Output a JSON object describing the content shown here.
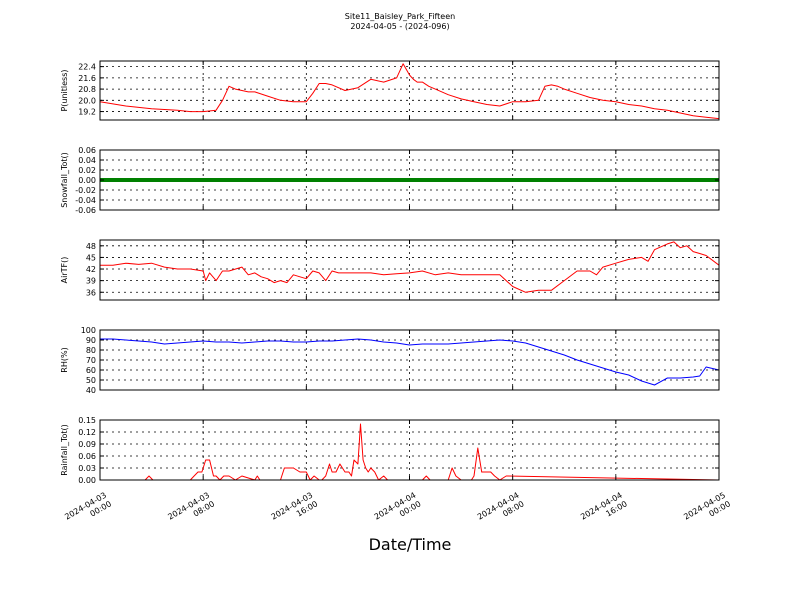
{
  "figure": {
    "title_line1": "Site11_Baisley_Park_Fifteen",
    "title_line2": "2024-04-05 - (2024-096)",
    "xlabel": "Date/Time"
  },
  "chart_data": [
    {
      "type": "line",
      "ylabel": "P(unitless)",
      "ylim": [
        18.6,
        22.8
      ],
      "yticks": [
        "22.4",
        "21.6",
        "20.8",
        "20.0",
        "19.2"
      ],
      "ytick_values": [
        22.4,
        21.6,
        20.8,
        20.0,
        19.2
      ],
      "xlim": [
        0,
        48
      ],
      "grid": true,
      "series": [
        {
          "color": "#ff0000",
          "x": [
            0,
            2,
            4,
            6,
            7,
            8,
            9,
            9.5,
            10,
            10.5,
            11,
            11.5,
            12,
            13,
            14,
            15,
            16,
            16.5,
            17,
            17.5,
            18,
            19,
            20,
            21,
            22,
            23,
            23.5,
            24,
            24.3,
            24.6,
            25,
            25.5,
            26,
            27,
            28,
            29,
            30,
            31,
            32,
            33,
            34,
            34.5,
            35,
            35.5,
            36,
            37,
            38,
            39,
            40,
            41,
            42,
            43,
            44,
            45,
            46,
            47,
            48
          ],
          "y": [
            19.9,
            19.6,
            19.4,
            19.3,
            19.2,
            19.2,
            19.3,
            20.0,
            21.0,
            20.8,
            20.7,
            20.6,
            20.6,
            20.3,
            20.0,
            19.9,
            19.9,
            20.5,
            21.2,
            21.2,
            21.1,
            20.7,
            20.9,
            21.5,
            21.3,
            21.6,
            22.6,
            21.8,
            21.5,
            21.3,
            21.3,
            21.0,
            20.8,
            20.4,
            20.1,
            19.9,
            19.7,
            19.6,
            19.9,
            19.9,
            20.0,
            21.0,
            21.1,
            21.0,
            20.8,
            20.5,
            20.2,
            20.0,
            19.9,
            19.7,
            19.6,
            19.4,
            19.3,
            19.1,
            18.9,
            18.8,
            18.7
          ]
        }
      ]
    },
    {
      "type": "line",
      "ylabel": "Snowfall_Tot()",
      "ylim": [
        -0.06,
        0.06
      ],
      "yticks": [
        "0.06",
        "0.04",
        "0.02",
        "0.00",
        "-0.02",
        "-0.04",
        "-0.06"
      ],
      "ytick_values": [
        0.06,
        0.04,
        0.02,
        0.0,
        -0.02,
        -0.04,
        -0.06
      ],
      "xlim": [
        0,
        48
      ],
      "grid": true,
      "series": [
        {
          "color": "#008000",
          "x": [
            0,
            48
          ],
          "y": [
            0.0,
            0.0
          ]
        }
      ]
    },
    {
      "type": "line",
      "ylabel": "AirTF()",
      "ylim": [
        34,
        49.5
      ],
      "yticks": [
        "48",
        "45",
        "42",
        "39",
        "36"
      ],
      "ytick_values": [
        48,
        45,
        42,
        39,
        36
      ],
      "xlim": [
        0,
        48
      ],
      "grid": true,
      "series": [
        {
          "color": "#ff0000",
          "x": [
            0,
            1,
            2,
            3,
            4,
            5,
            6,
            7,
            8,
            8.2,
            8.5,
            9,
            9.5,
            10,
            11,
            11.5,
            12,
            12.5,
            13,
            13.5,
            14,
            14.5,
            15,
            15.5,
            16,
            16.5,
            17,
            17.5,
            18,
            18.5,
            19,
            19.5,
            20,
            21,
            22,
            23,
            24,
            25,
            26,
            27,
            28,
            29,
            30,
            31,
            32,
            33,
            34,
            35,
            36,
            37,
            38,
            38.5,
            39,
            40,
            41,
            42,
            42.5,
            43,
            44,
            44.5,
            45,
            45.5,
            46,
            46.5,
            47,
            48
          ],
          "y": [
            43.0,
            43.0,
            43.5,
            43.2,
            43.5,
            42.5,
            42.0,
            42.0,
            41.5,
            39.0,
            41.0,
            39.0,
            41.5,
            41.5,
            42.5,
            40.5,
            41.0,
            40.0,
            39.5,
            38.5,
            39.0,
            38.5,
            40.5,
            40.0,
            39.5,
            41.5,
            41.0,
            39.0,
            41.5,
            41.0,
            41.0,
            41.0,
            41.0,
            41.0,
            40.5,
            40.8,
            41.0,
            41.5,
            40.5,
            41.0,
            40.5,
            40.5,
            40.5,
            40.5,
            37.5,
            36.0,
            36.5,
            36.5,
            39.0,
            41.5,
            41.5,
            40.5,
            42.5,
            43.5,
            44.5,
            45.0,
            44.0,
            47.0,
            48.5,
            49.0,
            47.5,
            48.0,
            46.5,
            46.0,
            45.5,
            43.0
          ]
        }
      ]
    },
    {
      "type": "line",
      "ylabel": "RH(%)",
      "ylim": [
        40,
        100
      ],
      "yticks": [
        "100",
        "90",
        "80",
        "70",
        "60",
        "50",
        "40"
      ],
      "ytick_values": [
        100,
        90,
        80,
        70,
        60,
        50,
        40
      ],
      "xlim": [
        0,
        48
      ],
      "grid": true,
      "series": [
        {
          "color": "#0000ff",
          "x": [
            0,
            1,
            2,
            3,
            4,
            5,
            6,
            7,
            8,
            9,
            10,
            11,
            12,
            13,
            14,
            15,
            16,
            17,
            18,
            19,
            20,
            21,
            22,
            23,
            24,
            25,
            26,
            27,
            28,
            29,
            30,
            31,
            32,
            33,
            34,
            35,
            36,
            37,
            38,
            39,
            40,
            41,
            42,
            43,
            44,
            45,
            46,
            46.5,
            47,
            48
          ],
          "y": [
            91,
            91,
            90,
            89,
            88,
            86,
            87,
            88,
            89,
            88,
            88,
            87,
            88,
            89,
            89,
            88,
            88,
            89,
            89,
            90,
            91,
            90,
            88,
            87,
            85,
            86,
            86,
            86,
            87,
            88,
            89,
            90,
            89,
            87,
            83,
            79,
            75,
            70,
            66,
            62,
            58,
            55,
            49,
            45,
            52,
            52,
            53,
            54,
            63,
            60
          ]
        }
      ]
    },
    {
      "type": "line",
      "ylabel": "Rainfall_Tot()",
      "ylim": [
        0,
        0.15
      ],
      "yticks": [
        "0.15",
        "0.12",
        "0.09",
        "0.06",
        "0.03",
        "0.00"
      ],
      "ytick_values": [
        0.15,
        0.12,
        0.09,
        0.06,
        0.03,
        0.0
      ],
      "xlim": [
        0,
        48
      ],
      "grid": true,
      "series": [
        {
          "color": "#ff0000",
          "x": [
            0,
            3.5,
            3.8,
            4.1,
            6.5,
            7,
            7.3,
            7.6,
            7.9,
            8.2,
            8.5,
            8.8,
            9,
            9.3,
            9.6,
            10,
            10.5,
            11,
            12,
            12.2,
            12.4,
            12.8,
            13.5,
            14,
            14.3,
            14.6,
            15,
            15.5,
            16,
            16.3,
            16.6,
            17,
            17.2,
            17.5,
            17.8,
            18,
            18.3,
            18.6,
            19,
            19.3,
            19.5,
            19.7,
            20,
            20.2,
            20.4,
            20.6,
            20.8,
            21,
            21.3,
            21.6,
            22,
            22.3,
            23,
            24,
            25,
            25.3,
            25.6,
            26,
            26.5,
            26.8,
            27,
            27.3,
            27.6,
            28,
            28.5,
            28.8,
            29,
            29.3,
            29.6,
            30,
            30.3,
            30.6,
            31,
            31.5,
            48
          ],
          "y": [
            0,
            0,
            0.01,
            0,
            0,
            0,
            0.01,
            0.02,
            0.02,
            0.05,
            0.05,
            0.01,
            0.01,
            0,
            0.01,
            0.01,
            0,
            0.01,
            0,
            0.01,
            0,
            0,
            0,
            0,
            0.03,
            0.03,
            0.03,
            0.02,
            0.02,
            0,
            0.01,
            0,
            0,
            0.01,
            0.04,
            0.02,
            0.02,
            0.04,
            0.02,
            0.02,
            0.01,
            0.05,
            0.04,
            0.14,
            0.05,
            0.03,
            0.02,
            0.03,
            0.02,
            0,
            0.01,
            0,
            0,
            0,
            0,
            0.01,
            0,
            0,
            0,
            0,
            0,
            0.03,
            0.01,
            0,
            0,
            0,
            0.01,
            0.08,
            0.02,
            0.02,
            0.02,
            0.01,
            0,
            0.01,
            0
          ]
        }
      ]
    }
  ],
  "xticks": [
    {
      "line1": "2024-04-03",
      "line2": "00:00"
    },
    {
      "line1": "2024-04-03",
      "line2": "08:00"
    },
    {
      "line1": "2024-04-03",
      "line2": "16:00"
    },
    {
      "line1": "2024-04-04",
      "line2": "00:00"
    },
    {
      "line1": "2024-04-04",
      "line2": "08:00"
    },
    {
      "line1": "2024-04-04",
      "line2": "16:00"
    },
    {
      "line1": "2024-04-05",
      "line2": "00:00"
    }
  ]
}
